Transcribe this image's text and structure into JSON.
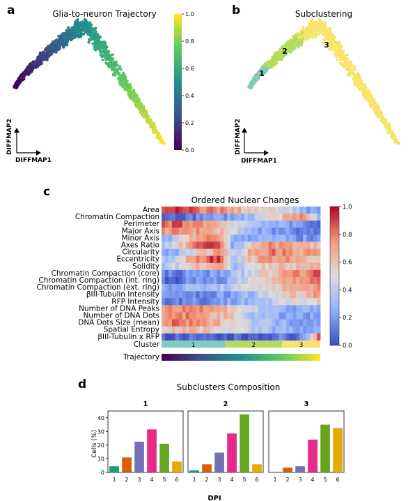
{
  "panels": {
    "a": {
      "letter": "a"
    },
    "b": {
      "letter": "b"
    },
    "c": {
      "letter": "c"
    },
    "d": {
      "letter": "d"
    }
  },
  "chart_data": [
    {
      "type": "scatter",
      "title": "Glia-to-neuron Trajectory",
      "xlabel": "DIFFMAP1",
      "ylabel": "DIFFMAP2",
      "colormap": "viridis",
      "colorbar": {
        "min": 0.0,
        "max": 1.0,
        "ticks": [
          "0.0",
          "0.2",
          "0.4",
          "0.6",
          "0.8",
          "1.0"
        ]
      },
      "description_of_points": "dense arc of cells colored by trajectory value 0 to 1"
    },
    {
      "type": "scatter",
      "title": "Subclustering",
      "xlabel": "DIFFMAP1",
      "ylabel": "DIFFMAP2",
      "clusters": [
        {
          "label": "1",
          "color": "#7fcdbb"
        },
        {
          "label": "2",
          "color": "#b5dc5c"
        },
        {
          "label": "3",
          "color": "#f7e46a"
        }
      ]
    },
    {
      "type": "heatmap",
      "title": "Ordered Nuclear Changes",
      "rows": [
        "Area",
        "Chromatin Compaction",
        "Perimeter",
        "Major Axis",
        "Minor Axis",
        "Axes Ratio",
        "Circularity",
        "Eccentricity",
        "Solidity",
        "Chromatin Compaction (core)",
        "Chromatin Compaction (int. ring)",
        "Chromatin Compaction (ext. ring)",
        "βIII-Tubulin Intensity",
        "RFP Intensity",
        "Number of DNA Peaks",
        "Number of DNA Dots",
        "DNA Dots Size (mean)",
        "Spatial Entropy",
        "βIII-Tubulin x RFP"
      ],
      "profiles": [
        [
          0.85,
          0.9,
          0.85,
          0.8,
          0.75,
          0.7,
          0.6,
          0.55,
          0.5,
          0.4,
          0.3,
          0.1
        ],
        [
          0.1,
          0.1,
          0.12,
          0.15,
          0.2,
          0.25,
          0.3,
          0.45,
          0.55,
          0.65,
          0.75,
          0.3
        ],
        [
          0.85,
          0.85,
          0.8,
          0.75,
          0.65,
          0.5,
          0.4,
          0.35,
          0.25,
          0.2,
          0.2,
          0.1
        ],
        [
          0.7,
          0.75,
          0.75,
          0.7,
          0.65,
          0.5,
          0.3,
          0.25,
          0.2,
          0.15,
          0.15,
          0.05
        ],
        [
          0.2,
          0.4,
          0.65,
          0.75,
          0.8,
          0.3,
          0.25,
          0.3,
          0.25,
          0.2,
          0.2,
          0.15
        ],
        [
          0.3,
          0.5,
          0.75,
          0.85,
          0.9,
          0.2,
          0.55,
          0.7,
          0.75,
          0.7,
          0.65,
          0.6
        ],
        [
          0.2,
          0.3,
          0.5,
          0.6,
          0.7,
          0.35,
          0.65,
          0.75,
          0.8,
          0.75,
          0.7,
          0.75
        ],
        [
          0.3,
          0.45,
          0.75,
          0.85,
          0.9,
          0.2,
          0.6,
          0.7,
          0.75,
          0.7,
          0.65,
          0.6
        ],
        [
          0.35,
          0.45,
          0.6,
          0.65,
          0.7,
          0.3,
          0.5,
          0.55,
          0.6,
          0.6,
          0.65,
          0.65
        ],
        [
          0.1,
          0.15,
          0.15,
          0.2,
          0.25,
          0.3,
          0.45,
          0.55,
          0.65,
          0.75,
          0.8,
          0.85
        ],
        [
          0.1,
          0.1,
          0.15,
          0.2,
          0.2,
          0.3,
          0.45,
          0.55,
          0.65,
          0.75,
          0.8,
          0.8
        ],
        [
          0.2,
          0.25,
          0.3,
          0.3,
          0.35,
          0.4,
          0.45,
          0.55,
          0.6,
          0.65,
          0.7,
          0.75
        ],
        [
          0.15,
          0.15,
          0.15,
          0.15,
          0.2,
          0.2,
          0.3,
          0.4,
          0.5,
          0.6,
          0.65,
          0.75
        ],
        [
          0.15,
          0.15,
          0.15,
          0.15,
          0.2,
          0.25,
          0.3,
          0.35,
          0.4,
          0.45,
          0.5,
          0.55
        ],
        [
          0.75,
          0.8,
          0.8,
          0.75,
          0.7,
          0.6,
          0.45,
          0.35,
          0.3,
          0.25,
          0.25,
          0.2
        ],
        [
          0.7,
          0.8,
          0.75,
          0.7,
          0.65,
          0.55,
          0.4,
          0.3,
          0.25,
          0.25,
          0.2,
          0.2
        ],
        [
          0.75,
          0.8,
          0.75,
          0.7,
          0.65,
          0.55,
          0.45,
          0.35,
          0.3,
          0.25,
          0.25,
          0.2
        ],
        [
          0.6,
          0.65,
          0.65,
          0.6,
          0.55,
          0.5,
          0.45,
          0.35,
          0.3,
          0.25,
          0.25,
          0.2
        ],
        [
          0.05,
          0.05,
          0.05,
          0.05,
          0.05,
          0.05,
          0.05,
          0.1,
          0.1,
          0.1,
          0.15,
          0.9
        ]
      ],
      "cluster_row": {
        "label": "Cluster",
        "segments": [
          {
            "label": "1",
            "fraction": 0.4,
            "color": "#7fcdbb"
          },
          {
            "label": "2",
            "fraction": 0.36,
            "color": "#b5dc5c"
          },
          {
            "label": "3",
            "fraction": 0.24,
            "color": "#f7e46a"
          }
        ]
      },
      "trajectory_row": {
        "label": "Trajectory",
        "colormap": "viridis"
      },
      "colorbar": {
        "min": 0.0,
        "max": 1.0,
        "ticks": [
          "0.0",
          "0.2",
          "0.4",
          "0.6",
          "0.8",
          "1.0"
        ],
        "colormap": "coolwarm"
      }
    },
    {
      "type": "bar",
      "title": "Subclusters Composition",
      "xlabel": "DPI",
      "ylabel": "Cells (%)",
      "ylim": [
        0,
        45
      ],
      "yticks": [
        "0",
        "10",
        "20",
        "30",
        "40"
      ],
      "categories": [
        "1",
        "2",
        "3",
        "4",
        "5",
        "6"
      ],
      "bar_colors": [
        "#1b9e77",
        "#d95f02",
        "#7570b3",
        "#e7298a",
        "#66a61e",
        "#e6ab02"
      ],
      "series": [
        {
          "name": "1",
          "values": [
            4.5,
            11,
            22.5,
            31.5,
            21,
            8
          ]
        },
        {
          "name": "2",
          "values": [
            1.5,
            6,
            14.5,
            28.5,
            42.5,
            6
          ]
        },
        {
          "name": "3",
          "values": [
            0,
            3.5,
            4.5,
            24,
            35,
            32.5
          ]
        }
      ]
    }
  ]
}
